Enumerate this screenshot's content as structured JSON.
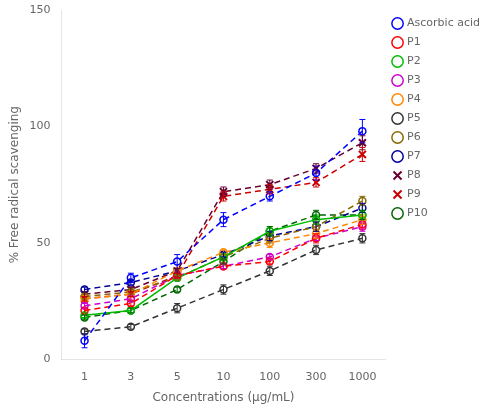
{
  "chart_data": {
    "type": "line",
    "xlabel": "Concentrations (μg/mL)",
    "ylabel": "% Free radical scavenging",
    "categories": [
      "1",
      "3",
      "5",
      "10",
      "100",
      "300",
      "1000"
    ],
    "series": [
      {
        "name": "Ascorbic acid",
        "color": "#0000FF",
        "marker": "circle",
        "line_style": "dashed",
        "values": [
          8,
          35,
          42,
          60,
          70,
          80,
          98
        ],
        "yerr": [
          3,
          2,
          3,
          3,
          2,
          3,
          5
        ]
      },
      {
        "name": "P1",
        "color": "#FF0000",
        "marker": "circle",
        "line_style": "dashed",
        "values": [
          21,
          24,
          36,
          40,
          42,
          52,
          58
        ],
        "yerr": [
          1,
          1,
          1,
          1,
          1,
          2,
          2
        ]
      },
      {
        "name": "P2",
        "color": "#00BB00",
        "marker": "circle",
        "line_style": "solid",
        "values": [
          19,
          21,
          35,
          44,
          55,
          60,
          62
        ],
        "yerr": [
          1,
          1,
          1,
          1,
          2,
          2,
          2
        ]
      },
      {
        "name": "P3",
        "color": "#CC00CC",
        "marker": "circle",
        "line_style": "dashed",
        "values": [
          23,
          26,
          36,
          40,
          44,
          52,
          57
        ],
        "yerr": [
          1,
          1,
          1,
          1,
          1,
          1,
          2
        ]
      },
      {
        "name": "P4",
        "color": "#FF8800",
        "marker": "circle",
        "line_style": "dashed",
        "values": [
          26,
          28,
          38,
          46,
          50,
          54,
          60
        ],
        "yerr": [
          1,
          1,
          1,
          1,
          2,
          2,
          2
        ]
      },
      {
        "name": "P5",
        "color": "#333333",
        "marker": "circle",
        "line_style": "dashed",
        "values": [
          12,
          14,
          22,
          30,
          38,
          47,
          52
        ],
        "yerr": [
          1,
          1,
          2,
          2,
          2,
          2,
          2
        ]
      },
      {
        "name": "P6",
        "color": "#886600",
        "marker": "circle",
        "line_style": "dashed",
        "values": [
          27,
          29,
          35,
          44,
          52,
          57,
          68
        ],
        "yerr": [
          1,
          1,
          1,
          1,
          2,
          2,
          2
        ]
      },
      {
        "name": "P7",
        "color": "#000099",
        "marker": "circle",
        "line_style": "dashed",
        "values": [
          30,
          33,
          38,
          45,
          53,
          57,
          65
        ],
        "yerr": [
          1,
          1,
          1,
          1,
          2,
          2,
          2
        ]
      },
      {
        "name": "P8",
        "color": "#660033",
        "marker": "x",
        "line_style": "dashed",
        "values": [
          28,
          30,
          38,
          72,
          75,
          82,
          93
        ],
        "yerr": [
          1,
          1,
          1,
          2,
          2,
          2,
          3
        ]
      },
      {
        "name": "P9",
        "color": "#CC0000",
        "marker": "x",
        "line_style": "dashed",
        "values": [
          26,
          28,
          36,
          70,
          73,
          76,
          88
        ],
        "yerr": [
          1,
          1,
          1,
          2,
          2,
          2,
          3
        ]
      },
      {
        "name": "P10",
        "color": "#006600",
        "marker": "circle",
        "line_style": "dashed",
        "values": [
          18,
          21,
          30,
          42,
          55,
          62,
          62
        ],
        "yerr": [
          1,
          1,
          1,
          1,
          2,
          2,
          2
        ]
      }
    ],
    "ylim": [
      0,
      150
    ],
    "yticks": [
      0,
      50,
      100,
      150
    ],
    "grid": false,
    "legend": "right"
  }
}
